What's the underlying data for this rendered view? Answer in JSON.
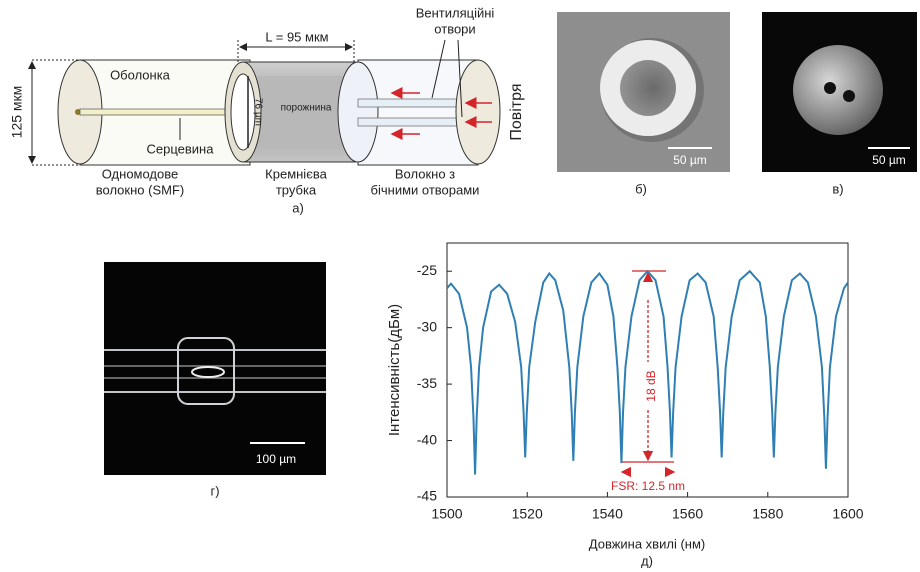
{
  "panel_a": {
    "caption": "а)",
    "length": "L = 95 мкм",
    "vents": [
      "Вентиляційні",
      "отвори"
    ],
    "cladding": "Оболонка",
    "diameter": "125 мкм",
    "inner_diameter": "76 µm",
    "cavity": "порожнина",
    "air": "Повітря",
    "core": "Серцевина",
    "smf": [
      "Одномодове",
      "волокно (SMF)"
    ],
    "tube": [
      "Кремнієва",
      "трубка"
    ],
    "side_hole_fiber": [
      "Волокно з",
      "бічними отворами"
    ]
  },
  "panel_b": {
    "caption": "б)",
    "scale_bar": "50 µm"
  },
  "panel_c": {
    "caption": "в)",
    "scale_bar": "50 µm"
  },
  "panel_d": {
    "caption": "г)",
    "scale_bar": "100 µm"
  },
  "chart_data": {
    "type": "line",
    "caption": "д)",
    "x_label": "Довжина хвилі (нм)",
    "y_label": "Інтенсивність(дБм)",
    "annotations": [
      "18 dB",
      "FSR: 12.5 nm"
    ],
    "color": "#2f7fb5",
    "xlim": [
      1500,
      1600
    ],
    "ylim": [
      -45,
      -22.5
    ],
    "xticks": [
      1500,
      1520,
      1540,
      1560,
      1580,
      1600
    ],
    "yticks": [
      -45,
      -40,
      -35,
      -30,
      -25
    ],
    "x": [
      1500,
      1501,
      1503,
      1505,
      1506,
      1506.6,
      1507,
      1507.4,
      1508,
      1509,
      1511,
      1513,
      1515,
      1517,
      1518.5,
      1519.1,
      1519.5,
      1519.9,
      1520.5,
      1522,
      1524,
      1525.5,
      1527,
      1529,
      1530.5,
      1531.1,
      1531.5,
      1531.9,
      1532.5,
      1534,
      1536,
      1538,
      1540,
      1541.5,
      1542.5,
      1543.1,
      1543.5,
      1543.9,
      1544.5,
      1546,
      1548,
      1550,
      1552,
      1554,
      1555,
      1555.6,
      1556,
      1556.4,
      1557,
      1558.5,
      1560.5,
      1562.5,
      1564.5,
      1566.5,
      1567.5,
      1568.1,
      1568.5,
      1568.9,
      1569.5,
      1571,
      1573,
      1575.5,
      1578,
      1579.5,
      1580.5,
      1581.1,
      1581.5,
      1581.9,
      1582.5,
      1584,
      1586,
      1588,
      1590,
      1592,
      1593.5,
      1594.1,
      1594.5,
      1594.9,
      1595.5,
      1597,
      1599,
      1600
    ],
    "values": [
      -26.5,
      -26.1,
      -27,
      -30,
      -33.5,
      -38,
      -43,
      -38,
      -33.5,
      -30,
      -26.8,
      -26.2,
      -27,
      -29.5,
      -33.5,
      -37.5,
      -41.5,
      -37.5,
      -33.5,
      -29.5,
      -26,
      -25.2,
      -25.8,
      -28.5,
      -33.5,
      -37.5,
      -41.8,
      -37.5,
      -33.5,
      -29,
      -26,
      -25.2,
      -26.2,
      -29,
      -33.5,
      -37.5,
      -42,
      -37.5,
      -33.5,
      -29,
      -25.8,
      -25,
      -25.8,
      -29,
      -33.5,
      -37.5,
      -41.5,
      -37.5,
      -33.5,
      -29,
      -25.8,
      -25.2,
      -26,
      -29,
      -33.5,
      -37.5,
      -41.5,
      -37.5,
      -33.5,
      -29,
      -25.8,
      -25,
      -26,
      -29,
      -33.5,
      -37.5,
      -41.5,
      -37.5,
      -33.5,
      -29,
      -25.8,
      -25.2,
      -26,
      -29,
      -33.5,
      -38,
      -42.5,
      -38,
      -33.5,
      -29,
      -26.5,
      -26
    ]
  }
}
